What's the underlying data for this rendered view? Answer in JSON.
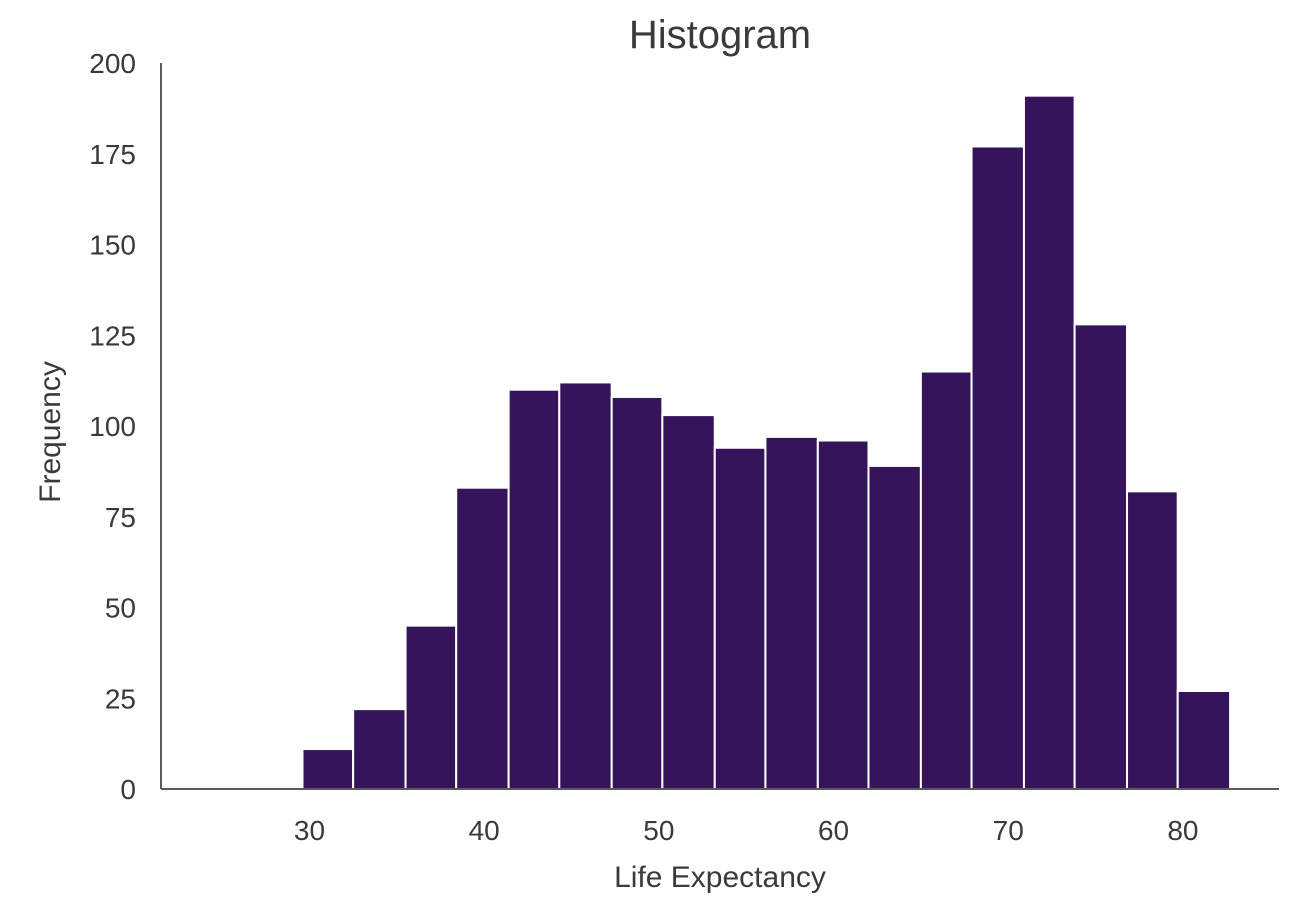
{
  "chart_data": {
    "type": "bar",
    "subtype": "histogram",
    "title": "Histogram",
    "xlabel": "Life Expectancy",
    "ylabel": "Frequency",
    "xlim": [
      21.5,
      85.5
    ],
    "ylim": [
      0,
      200
    ],
    "x_ticks": [
      30,
      40,
      50,
      60,
      70,
      80
    ],
    "y_ticks": [
      0,
      25,
      50,
      75,
      100,
      125,
      150,
      175,
      200
    ],
    "bin_edges": [
      29.6,
      32.5,
      35.5,
      38.4,
      41.4,
      44.3,
      47.3,
      50.2,
      53.2,
      56.1,
      59.1,
      62.0,
      65.0,
      67.9,
      70.9,
      73.8,
      76.8,
      79.7,
      82.7
    ],
    "values": [
      11,
      22,
      45,
      83,
      110,
      112,
      108,
      103,
      94,
      97,
      96,
      89,
      115,
      177,
      191,
      128,
      82,
      27
    ],
    "color": "#35145b",
    "grid": false,
    "legend": "none"
  }
}
